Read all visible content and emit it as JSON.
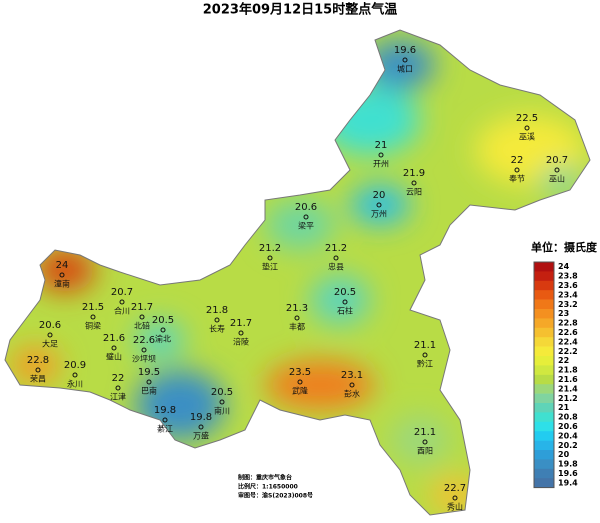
{
  "title": "2023年09月12日15时整点气温",
  "legend": {
    "title": "单位：摄氏度",
    "ticks": [
      24,
      23.8,
      23.6,
      23.4,
      23.2,
      23,
      22.8,
      22.6,
      22.4,
      22.2,
      22,
      21.8,
      21.6,
      21.4,
      21.2,
      21,
      20.8,
      20.6,
      20.4,
      20.2,
      20,
      19.8,
      19.6,
      19.4
    ]
  },
  "stations": [
    {
      "name": "城口",
      "value": 19.6
    },
    {
      "name": "巫溪",
      "value": 22.5
    },
    {
      "name": "开州",
      "value": 21
    },
    {
      "name": "巫山",
      "value": 20.7
    },
    {
      "name": "奉节",
      "value": 22
    },
    {
      "name": "云阳",
      "value": 21.9
    },
    {
      "name": "万州",
      "value": 20
    },
    {
      "name": "梁平",
      "value": 20.6
    },
    {
      "name": "垫江",
      "value": 21.2
    },
    {
      "name": "忠县",
      "value": 21.2
    },
    {
      "name": "潼南",
      "value": 24
    },
    {
      "name": "合川",
      "value": 20.7
    },
    {
      "name": "石柱",
      "value": 20.5
    },
    {
      "name": "铜梁",
      "value": 21.5
    },
    {
      "name": "北碚",
      "value": 21.7
    },
    {
      "name": "长寿",
      "value": 21.8
    },
    {
      "name": "丰都",
      "value": 21.3
    },
    {
      "name": "渝北",
      "value": 20.5
    },
    {
      "name": "大足",
      "value": 20.6
    },
    {
      "name": "涪陵",
      "value": 21.7
    },
    {
      "name": "璧山",
      "value": 21.6
    },
    {
      "name": "沙坪坝",
      "value": 22.6
    },
    {
      "name": "黔江",
      "value": 21.1
    },
    {
      "name": "荣昌",
      "value": 22.8
    },
    {
      "name": "永川",
      "value": 20.9
    },
    {
      "name": "江津",
      "value": 22
    },
    {
      "name": "巴南",
      "value": 19.5
    },
    {
      "name": "武隆",
      "value": 23.5
    },
    {
      "name": "彭水",
      "value": 23.1
    },
    {
      "name": "南川",
      "value": 20.5
    },
    {
      "name": "綦江",
      "value": 19.8
    },
    {
      "name": "万盛",
      "value": 19.8
    },
    {
      "name": "酉阳",
      "value": 21.1
    },
    {
      "name": "秀山",
      "value": 22.7
    }
  ],
  "footer": [
    "制图：重庆市气象台",
    "比例尺：1:1650000",
    "审图号：渝S(2023)008号"
  ]
}
